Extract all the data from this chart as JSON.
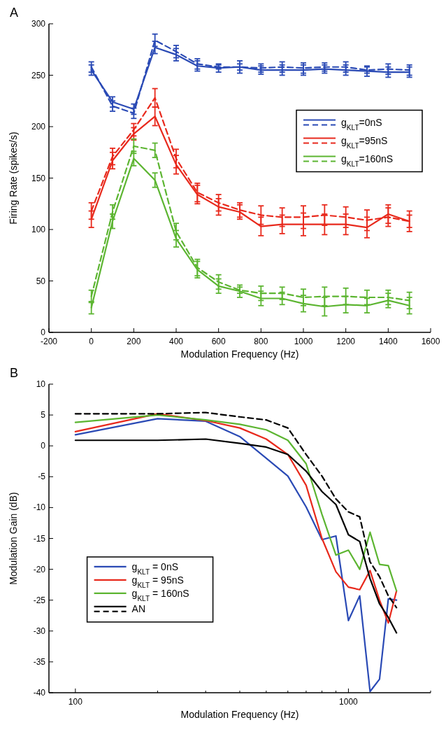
{
  "chart_data": [
    {
      "type": "line",
      "title": "A",
      "xlabel": "Modulation Frequency (Hz)",
      "ylabel": "Firing Rate (spikes/s)",
      "xlim": [
        -200,
        1600
      ],
      "ylim": [
        0,
        300
      ],
      "xticks": [
        -200,
        0,
        200,
        400,
        600,
        800,
        1000,
        1200,
        1400,
        1600
      ],
      "yticks": [
        0,
        50,
        100,
        150,
        200,
        250,
        300
      ],
      "legend": "right",
      "marker": "none",
      "x": [
        0,
        100,
        200,
        300,
        400,
        500,
        600,
        700,
        800,
        900,
        1000,
        1100,
        1200,
        1300,
        1400,
        1500
      ],
      "series": [
        {
          "name": "g$_{KLT}$=0nS",
          "color": "#2a4ab5",
          "line_style": "solid",
          "values": [
            255,
            224,
            217,
            277,
            270,
            259,
            257,
            258,
            255,
            255,
            255,
            256,
            255,
            254,
            253,
            253
          ],
          "errors": [
            5,
            5,
            5,
            6,
            6,
            5,
            4,
            6,
            4,
            5,
            5,
            4,
            5,
            5,
            5,
            5
          ]
        },
        {
          "color": "#2a4ab5",
          "line_style": "dashed",
          "values": [
            258,
            220,
            213,
            284,
            273,
            261,
            258,
            258,
            257,
            258,
            257,
            258,
            258,
            255,
            256,
            255
          ],
          "errors": [
            5,
            5,
            5,
            6,
            6,
            5,
            2,
            3,
            4,
            5,
            5,
            4,
            5,
            3,
            5,
            5
          ]
        },
        {
          "name": "g$_{KLT}$=95nS",
          "color": "#e8291c",
          "line_style": "solid",
          "values": [
            110,
            167,
            193,
            210,
            163,
            134,
            122,
            117,
            103,
            105,
            105,
            105,
            105,
            102,
            115,
            108
          ],
          "errors": [
            8,
            8,
            6,
            9,
            9,
            9,
            8,
            7,
            9,
            9,
            11,
            10,
            10,
            10,
            9,
            10
          ]
        },
        {
          "color": "#e8291c",
          "line_style": "dashed",
          "values": [
            118,
            171,
            197,
            228,
            169,
            136,
            126,
            119,
            114,
            112,
            112,
            114,
            112,
            109,
            112,
            108
          ],
          "errors": [
            8,
            8,
            6,
            9,
            9,
            9,
            8,
            7,
            9,
            9,
            11,
            10,
            10,
            10,
            9,
            6
          ]
        },
        {
          "name": "g$_{KLT}$=160nS",
          "color": "#5cb531",
          "line_style": "solid",
          "values": [
            24,
            108,
            169,
            148,
            91,
            61,
            45,
            40,
            33,
            33,
            28,
            25,
            27,
            26,
            31,
            26
          ],
          "errors": [
            6,
            7,
            7,
            7,
            8,
            8,
            7,
            6,
            7,
            6,
            8,
            9,
            8,
            7,
            7,
            8
          ]
        },
        {
          "color": "#5cb531",
          "line_style": "dashed",
          "values": [
            35,
            117,
            181,
            177,
            98,
            63,
            49,
            41,
            38,
            38,
            34,
            35,
            35,
            34,
            34,
            31
          ],
          "errors": [
            6,
            7,
            7,
            7,
            8,
            8,
            7,
            3,
            7,
            6,
            8,
            9,
            8,
            7,
            7,
            8
          ]
        }
      ]
    },
    {
      "type": "line",
      "title": "B",
      "xlabel": "Modulation Frequency (Hz)",
      "ylabel": "Modulation Gain (dB)",
      "log": "x",
      "xlim": [
        80,
        2000
      ],
      "ylim": [
        -40,
        10
      ],
      "xticks": [
        100,
        {
          "value": 200,
          "label": null
        },
        {
          "value": 300,
          "label": null
        },
        {
          "value": 400,
          "label": null
        },
        {
          "value": 500,
          "label": null
        },
        {
          "value": 600,
          "label": null
        },
        {
          "value": 700,
          "label": null
        },
        {
          "value": 800,
          "label": null
        },
        {
          "value": 900,
          "label": null
        },
        1000,
        {
          "value": 2000,
          "label": null
        }
      ],
      "yticks": [
        -40,
        -35,
        -30,
        -25,
        -20,
        -15,
        -10,
        -5,
        0,
        5,
        10
      ],
      "legend": "left",
      "marker": "none",
      "x": [
        100,
        200,
        300,
        400,
        500,
        600,
        700,
        800,
        900,
        1000,
        1100,
        1200,
        1300,
        1400,
        1500
      ],
      "series": [
        {
          "name": "g$_{KLT}$ = 0nS",
          "color": "#2a4ab5",
          "line_style": "solid",
          "values": [
            1.8,
            4.4,
            4.0,
            1.5,
            -2.0,
            -4.9,
            -9.9,
            -15.2,
            -14.6,
            -28.3,
            -24.3,
            -39.8,
            -37.8,
            -24.8,
            -25
          ]
        },
        {
          "name": "g$_{KLT}$ = 95nS",
          "color": "#e8291c",
          "line_style": "solid",
          "values": [
            2.3,
            5.2,
            4.1,
            2.9,
            1.1,
            -1.4,
            -6.4,
            -15,
            -20.4,
            -22.9,
            -23.3,
            -20.2,
            -25,
            -28.7,
            -23.5
          ]
        },
        {
          "name": "g$_{KLT}$ = 160nS",
          "color": "#5cb531",
          "line_style": "solid",
          "values": [
            3.8,
            5.0,
            4.2,
            3.5,
            2.6,
            0.9,
            -2.9,
            -11.1,
            -17.7,
            -16.9,
            -20,
            -14,
            -19.2,
            -19.4,
            -23.5
          ]
        },
        {
          "name": "AN",
          "color": "#000000",
          "line_style": "solid",
          "values": [
            0.9,
            0.9,
            1.1,
            0.4,
            -0.2,
            -1.4,
            -4.1,
            -7.4,
            -9.5,
            -14.4,
            -15.5,
            -21.5,
            -25.6,
            -27.8,
            -30.3
          ]
        },
        {
          "color": "#000000",
          "line_style": "dashed",
          "values": [
            5.2,
            5.2,
            5.4,
            4.7,
            4.2,
            2.9,
            -1.4,
            -4.9,
            -8.6,
            -10.7,
            -11.5,
            -18.8,
            -21.2,
            -24.3,
            -26.2
          ]
        }
      ]
    }
  ]
}
